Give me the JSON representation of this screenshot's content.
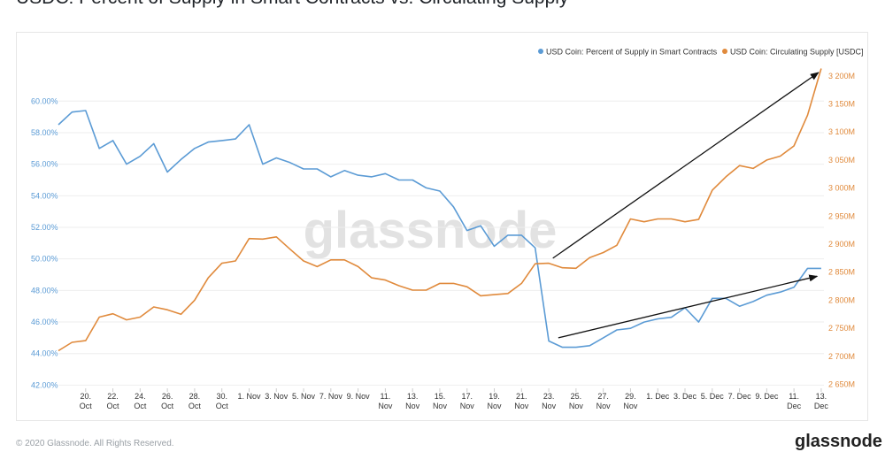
{
  "title": "USDC: Percent of Supply in Smart Contracts vs. Circulating Supply",
  "watermark": "glassnode",
  "footer": {
    "copyright": "© 2020 Glassnode. All Rights Reserved.",
    "brand": "glassnode"
  },
  "colors": {
    "left_series": "#5b9bd5",
    "right_series": "#e08a3c",
    "grid": "#eeeeee",
    "arrow": "#111111"
  },
  "chart_data": {
    "type": "line",
    "title": "USDC: Percent of Supply in Smart Contracts vs. Circulating Supply",
    "legend_position": "top-right",
    "grid": false,
    "x_ticks": [
      {
        "x": 2,
        "lines": [
          "20.",
          "Oct"
        ]
      },
      {
        "x": 4,
        "lines": [
          "22.",
          "Oct"
        ]
      },
      {
        "x": 6,
        "lines": [
          "24.",
          "Oct"
        ]
      },
      {
        "x": 8,
        "lines": [
          "26.",
          "Oct"
        ]
      },
      {
        "x": 10,
        "lines": [
          "28.",
          "Oct"
        ]
      },
      {
        "x": 12,
        "lines": [
          "30.",
          "Oct"
        ]
      },
      {
        "x": 14,
        "lines": [
          "1. Nov"
        ]
      },
      {
        "x": 16,
        "lines": [
          "3. Nov"
        ]
      },
      {
        "x": 18,
        "lines": [
          "5. Nov"
        ]
      },
      {
        "x": 20,
        "lines": [
          "7. Nov"
        ]
      },
      {
        "x": 22,
        "lines": [
          "9. Nov"
        ]
      },
      {
        "x": 24,
        "lines": [
          "11.",
          "Nov"
        ]
      },
      {
        "x": 26,
        "lines": [
          "13.",
          "Nov"
        ]
      },
      {
        "x": 28,
        "lines": [
          "15.",
          "Nov"
        ]
      },
      {
        "x": 30,
        "lines": [
          "17.",
          "Nov"
        ]
      },
      {
        "x": 32,
        "lines": [
          "19.",
          "Nov"
        ]
      },
      {
        "x": 34,
        "lines": [
          "21.",
          "Nov"
        ]
      },
      {
        "x": 36,
        "lines": [
          "23.",
          "Nov"
        ]
      },
      {
        "x": 38,
        "lines": [
          "25.",
          "Nov"
        ]
      },
      {
        "x": 40,
        "lines": [
          "27.",
          "Nov"
        ]
      },
      {
        "x": 42,
        "lines": [
          "29.",
          "Nov"
        ]
      },
      {
        "x": 44,
        "lines": [
          "1. Dec"
        ]
      },
      {
        "x": 46,
        "lines": [
          "3. Dec"
        ]
      },
      {
        "x": 48,
        "lines": [
          "5. Dec"
        ]
      },
      {
        "x": 50,
        "lines": [
          "7. Dec"
        ]
      },
      {
        "x": 52,
        "lines": [
          "9. Dec"
        ]
      },
      {
        "x": 54,
        "lines": [
          "11.",
          "Dec"
        ]
      },
      {
        "x": 56,
        "lines": [
          "13.",
          "Dec"
        ]
      }
    ],
    "xlim": [
      0,
      56.2
    ],
    "y_left": {
      "range": [
        41.8,
        62.2
      ],
      "ticks": [
        42,
        44,
        46,
        48,
        50,
        52,
        54,
        56,
        58,
        60
      ],
      "tick_labels": [
        "42.00%",
        "44.00%",
        "46.00%",
        "48.00%",
        "50.00%",
        "52.00%",
        "54.00%",
        "56.00%",
        "58.00%",
        "60.00%"
      ]
    },
    "y_right": {
      "range": [
        2643,
        3217
      ],
      "ticks": [
        2650,
        2700,
        2750,
        2800,
        2850,
        2900,
        2950,
        3000,
        3050,
        3100,
        3150,
        3200
      ],
      "tick_labels": [
        "2 650M",
        "2 700M",
        "2 750M",
        "2 800M",
        "2 850M",
        "2 900M",
        "2 950M",
        "3 000M",
        "3 050M",
        "3 100M",
        "3 150M",
        "3 200M"
      ]
    },
    "series": [
      {
        "name": "USD Coin: Percent of Supply in Smart Contracts",
        "axis": "left",
        "color": "#5b9bd5",
        "x": [
          0,
          1,
          2,
          3,
          4,
          5,
          6,
          7,
          8,
          9,
          10,
          11,
          12,
          13,
          14,
          15,
          16,
          17,
          18,
          19,
          20,
          21,
          22,
          23,
          24,
          25,
          26,
          27,
          28,
          29,
          30,
          31,
          32,
          33,
          34,
          35,
          36,
          37,
          38,
          39,
          40,
          41,
          42,
          43,
          44,
          45,
          46,
          47,
          48,
          49,
          50,
          51,
          52,
          53,
          54,
          55,
          56
        ],
        "values": [
          58.5,
          59.3,
          59.4,
          57.0,
          57.5,
          56.0,
          56.5,
          57.3,
          55.5,
          56.3,
          57.0,
          57.4,
          57.5,
          57.6,
          58.5,
          56.0,
          56.4,
          56.1,
          55.7,
          55.7,
          55.2,
          55.6,
          55.3,
          55.2,
          55.4,
          55.0,
          55.0,
          54.5,
          54.3,
          53.3,
          51.8,
          52.1,
          50.8,
          51.5,
          51.5,
          50.7,
          44.8,
          44.4,
          44.4,
          44.5,
          45.0,
          45.5,
          45.6,
          46.0,
          46.2,
          46.3,
          46.9,
          46.0,
          47.5,
          47.5,
          47.0,
          47.3,
          47.7,
          47.9,
          48.2,
          49.4,
          49.4
        ]
      },
      {
        "name": "USD Coin: Circulating Supply [USDC]",
        "axis": "right",
        "color": "#e08a3c",
        "x": [
          0,
          1,
          2,
          3,
          4,
          5,
          6,
          7,
          8,
          9,
          10,
          11,
          12,
          13,
          14,
          15,
          16,
          17,
          18,
          19,
          20,
          21,
          22,
          23,
          24,
          25,
          26,
          27,
          28,
          29,
          30,
          31,
          32,
          33,
          34,
          35,
          36,
          37,
          38,
          39,
          40,
          41,
          42,
          43,
          44,
          45,
          46,
          47,
          48,
          49,
          50,
          51,
          52,
          53,
          54,
          55,
          56
        ],
        "values": [
          2710,
          2725,
          2728,
          2770,
          2776,
          2765,
          2770,
          2788,
          2783,
          2775,
          2800,
          2840,
          2866,
          2870,
          2910,
          2909,
          2913,
          2891,
          2870,
          2860,
          2872,
          2872,
          2860,
          2840,
          2836,
          2826,
          2818,
          2818,
          2830,
          2830,
          2824,
          2808,
          2810,
          2812,
          2830,
          2865,
          2866,
          2858,
          2857,
          2876,
          2885,
          2898,
          2945,
          2940,
          2945,
          2945,
          2940,
          2944,
          2996,
          3020,
          3040,
          3035,
          3050,
          3057,
          3075,
          3130,
          3213
        ]
      }
    ],
    "annotations": [
      {
        "type": "arrow",
        "axis": "right",
        "from": [
          36.3,
          2875
        ],
        "to": [
          55.8,
          3206
        ]
      },
      {
        "type": "arrow",
        "axis": "left",
        "from": [
          36.7,
          45.0
        ],
        "to": [
          55.7,
          48.9
        ]
      }
    ]
  }
}
